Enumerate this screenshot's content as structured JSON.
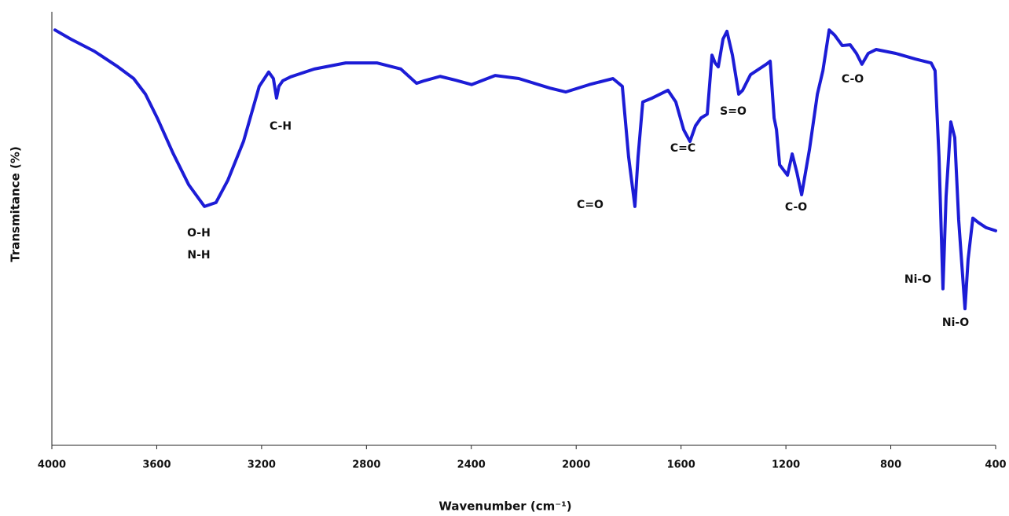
{
  "chart_data": {
    "type": "line",
    "x_label": "Wavenumber (cm⁻¹)",
    "y_label": "Transmitance (%)",
    "xlim": [
      4000,
      400
    ],
    "xticks": [
      4000,
      3600,
      3200,
      2800,
      2400,
      2000,
      1600,
      1200,
      800,
      400
    ],
    "ylim": [
      0,
      100
    ],
    "series": [
      {
        "color": "#1c1cd6",
        "x": [
          3988,
          3928,
          3838,
          3748,
          3688,
          3643,
          3598,
          3538,
          3478,
          3418,
          3374,
          3329,
          3269,
          3209,
          3173,
          3155,
          3143,
          3134,
          3119,
          3089,
          2999,
          2879,
          2759,
          2669,
          2609,
          2579,
          2519,
          2459,
          2399,
          2309,
          2219,
          2100,
          2040,
          1950,
          1860,
          1824,
          1800,
          1776,
          1764,
          1746,
          1710,
          1650,
          1620,
          1590,
          1566,
          1545,
          1524,
          1500,
          1482,
          1470,
          1458,
          1440,
          1425,
          1404,
          1380,
          1365,
          1335,
          1275,
          1260,
          1245,
          1236,
          1224,
          1194,
          1176,
          1158,
          1140,
          1110,
          1080,
          1059,
          1035,
          1014,
          985,
          955,
          931,
          910,
          886,
          856,
          781,
          706,
          646,
          631,
          616,
          601,
          589,
          571,
          556,
          541,
          517,
          505,
          487,
          466,
          436,
          400
        ],
        "values": [
          95.8,
          93.7,
          90.9,
          87.3,
          84.6,
          81.0,
          75.5,
          67.4,
          60.1,
          55.1,
          56.0,
          61.1,
          70.1,
          82.8,
          86.1,
          84.6,
          80.1,
          82.8,
          84.1,
          85.0,
          86.8,
          88.2,
          88.2,
          86.8,
          83.5,
          84.1,
          85.1,
          84.2,
          83.2,
          85.3,
          84.6,
          82.4,
          81.5,
          83.2,
          84.6,
          82.8,
          66.5,
          55.1,
          66.5,
          79.2,
          80.1,
          81.9,
          79.2,
          72.8,
          70.1,
          73.7,
          75.5,
          76.4,
          90.0,
          88.2,
          87.3,
          93.7,
          95.5,
          90.0,
          81.0,
          81.9,
          85.5,
          87.9,
          88.6,
          75.5,
          72.8,
          64.7,
          62.3,
          67.2,
          62.9,
          57.8,
          68.3,
          81.0,
          86.4,
          95.8,
          94.6,
          92.2,
          92.4,
          90.4,
          87.9,
          90.4,
          91.3,
          90.4,
          89.1,
          88.2,
          86.4,
          66.5,
          36.1,
          57.4,
          74.6,
          71.0,
          52.0,
          31.5,
          42.9,
          52.4,
          51.4,
          50.2,
          49.5
        ]
      }
    ],
    "annotations": [
      "O-H",
      "N-H",
      "C-H",
      "C=O",
      "C=C",
      "S=O",
      "C-O",
      "C-O",
      "Ni-O",
      "Ni-O"
    ]
  }
}
